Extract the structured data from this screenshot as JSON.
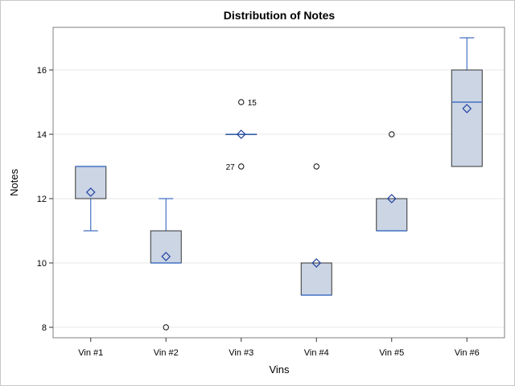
{
  "chart_data": {
    "type": "box",
    "title": "Distribution of Notes",
    "xlabel": "Vins",
    "ylabel": "Notes",
    "ylim": [
      7.6,
      17.3
    ],
    "yticks": [
      8,
      10,
      12,
      14,
      16
    ],
    "grid": "horizontal",
    "colors": {
      "box_fill": "#cbd5e4",
      "box_stroke": "#333333",
      "whisker": "#4472c4",
      "median": "#4472c4",
      "mean_marker": "#1f3fa0",
      "grid": "#e8e8e8"
    },
    "categories": [
      "Vin #1",
      "Vin #2",
      "Vin #3",
      "Vin #4",
      "Vin #5",
      "Vin #6"
    ],
    "boxes": [
      {
        "category": "Vin #1",
        "min": 11,
        "q1": 12,
        "median": 13,
        "q3": 13,
        "max": 13,
        "mean": 12.2,
        "outliers": []
      },
      {
        "category": "Vin #2",
        "min": 10,
        "q1": 10,
        "median": 10,
        "q3": 11,
        "max": 12,
        "mean": 10.2,
        "outliers": [
          {
            "value": 8,
            "label": ""
          }
        ]
      },
      {
        "category": "Vin #3",
        "min": 14,
        "q1": 14,
        "median": 14,
        "q3": 14,
        "max": 14,
        "mean": 14,
        "outliers": [
          {
            "value": 15,
            "label": "15"
          },
          {
            "value": 13,
            "label": "27"
          }
        ]
      },
      {
        "category": "Vin #4",
        "min": 9,
        "q1": 9,
        "median": 9,
        "q3": 10,
        "max": 10,
        "mean": 10,
        "outliers": [
          {
            "value": 13,
            "label": ""
          }
        ]
      },
      {
        "category": "Vin #5",
        "min": 11,
        "q1": 11,
        "median": 11,
        "q3": 12,
        "max": 12,
        "mean": 12,
        "outliers": [
          {
            "value": 14,
            "label": ""
          }
        ]
      },
      {
        "category": "Vin #6",
        "min": 13,
        "q1": 13,
        "median": 15,
        "q3": 16,
        "max": 17,
        "mean": 14.8,
        "outliers": []
      }
    ]
  }
}
